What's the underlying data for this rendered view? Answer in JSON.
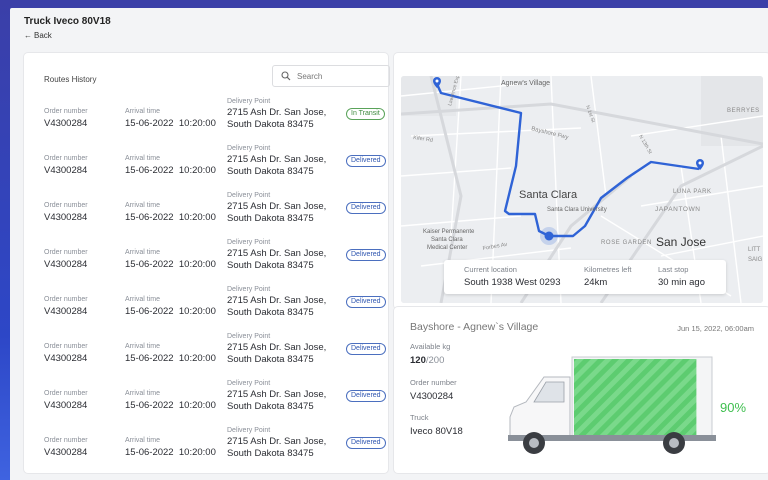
{
  "header": {
    "title": "Truck Iveco 80V18",
    "back_label": "Back"
  },
  "routes": {
    "title": "Routes History",
    "search_placeholder": "Search",
    "labels": {
      "order": "Order number",
      "arrival": "Arrival time",
      "delivery": "Delivery Point"
    },
    "rows": [
      {
        "order": "V4300284",
        "arrival": "15-06-2022  10:20:00",
        "addr1": "2715 Ash Dr. San Jose,",
        "addr2": "South Dakota 83475",
        "status": "In Transit"
      },
      {
        "order": "V4300284",
        "arrival": "15-06-2022  10:20:00",
        "addr1": "2715 Ash Dr. San Jose,",
        "addr2": "South Dakota 83475",
        "status": "Delivered"
      },
      {
        "order": "V4300284",
        "arrival": "15-06-2022  10:20:00",
        "addr1": "2715 Ash Dr. San Jose,",
        "addr2": "South Dakota 83475",
        "status": "Delivered"
      },
      {
        "order": "V4300284",
        "arrival": "15-06-2022  10:20:00",
        "addr1": "2715 Ash Dr. San Jose,",
        "addr2": "South Dakota 83475",
        "status": "Delivered"
      },
      {
        "order": "V4300284",
        "arrival": "15-06-2022  10:20:00",
        "addr1": "2715 Ash Dr. San Jose,",
        "addr2": "South Dakota 83475",
        "status": "Delivered"
      },
      {
        "order": "V4300284",
        "arrival": "15-06-2022  10:20:00",
        "addr1": "2715 Ash Dr. San Jose,",
        "addr2": "South Dakota 83475",
        "status": "Delivered"
      },
      {
        "order": "V4300284",
        "arrival": "15-06-2022  10:20:00",
        "addr1": "2715 Ash Dr. San Jose,",
        "addr2": "South Dakota 83475",
        "status": "Delivered"
      },
      {
        "order": "V4300284",
        "arrival": "15-06-2022  10:20:00",
        "addr1": "2715 Ash Dr. San Jose,",
        "addr2": "South Dakota 83475",
        "status": "Delivered"
      }
    ]
  },
  "map": {
    "labels": {
      "agnews_village": "Agnew's Village",
      "bayshore_fwy": "Bayshore Fwy",
      "santa_clara": "Santa Clara",
      "santa_clara_university": "Santa Clara University",
      "san_jose": "San Jose",
      "japantown": "JAPANTOWN",
      "luna_park": "LUNA PARK",
      "berryessa": "BERRYES",
      "rose_garden": "ROSE GARDEN",
      "kaiser_1": "Kaiser Permanente",
      "kaiser_2": "Santa Clara",
      "kaiser_3": "Medical Center",
      "forbes_ave": "Forbes Av",
      "lawrence_expy": "Lawrence Expy",
      "kifer_rd": "Kifer Rd",
      "first_st": "N 1st St",
      "thirteenth_st": "N 13th St",
      "little": "LITT",
      "saigon": "SAIG"
    },
    "info": {
      "current_location_label": "Current location",
      "current_location": "South 1938 West 0293",
      "km_left_label": "Kilometres left",
      "km_left": "24km",
      "last_stop_label": "Last stop",
      "last_stop": "30 min ago"
    },
    "route_color": "#2f63d6"
  },
  "detail": {
    "title": "Bayshore - Agnew`s Village",
    "date": "Jun 15, 2022, 06:00am",
    "available_label": "Available kg",
    "available_value": "120",
    "available_total": "/200",
    "order_label": "Order number",
    "order_value": "V4300284",
    "truck_label": "Truck",
    "truck_value": "Iveco 80V18",
    "load_percent_text": "90%",
    "load_fraction": 0.9,
    "load_color": "#5dcc70"
  }
}
